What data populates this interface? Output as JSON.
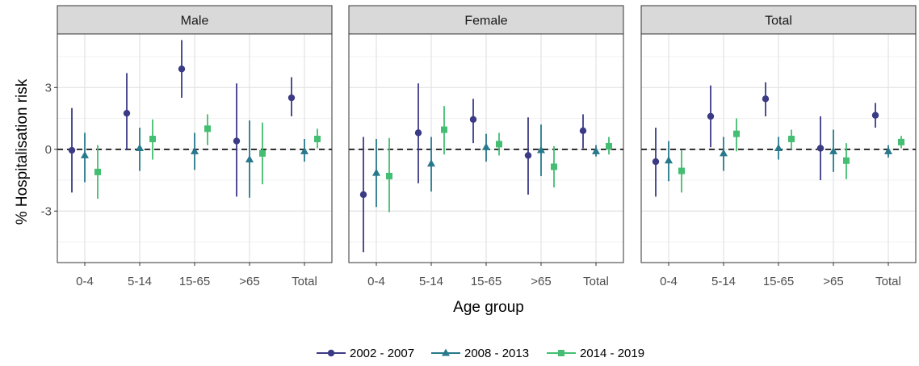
{
  "chart_data": {
    "type": "scatter",
    "subtype": "point-range faceted",
    "xlabel": "Age group",
    "ylabel": "% Hospitalisation risk",
    "ylim": [
      -5.5,
      5.6
    ],
    "yticks": [
      -3,
      0,
      3
    ],
    "reference_line": 0,
    "grid": true,
    "legend_position": "bottom",
    "categories": [
      "0-4",
      "5-14",
      "15-65",
      ">65",
      "Total"
    ],
    "series": [
      {
        "name": "2002 - 2007",
        "marker": "circle",
        "color": "#3b3a85"
      },
      {
        "name": "2008 - 2013",
        "marker": "triangle",
        "color": "#28798c"
      },
      {
        "name": "2014 - 2019",
        "marker": "square",
        "color": "#43be72"
      }
    ],
    "panels": [
      {
        "title": "Male",
        "data": {
          "2002 - 2007": [
            [
              -0.05,
              -2.1,
              2.0
            ],
            [
              1.75,
              -0.05,
              3.7
            ],
            [
              3.9,
              2.5,
              5.3
            ],
            [
              0.4,
              -2.3,
              3.2
            ],
            [
              2.5,
              1.6,
              3.5
            ]
          ],
          "2008 - 2013": [
            [
              -0.3,
              -1.6,
              0.8
            ],
            [
              0.05,
              -1.05,
              1.05
            ],
            [
              -0.1,
              -1.0,
              0.8
            ],
            [
              -0.5,
              -2.35,
              1.4
            ],
            [
              -0.1,
              -0.6,
              0.5
            ]
          ],
          "2014 - 2019": [
            [
              -1.1,
              -2.4,
              0.2
            ],
            [
              0.5,
              -0.5,
              1.45
            ],
            [
              1.0,
              0.2,
              1.7
            ],
            [
              -0.2,
              -1.7,
              1.3
            ],
            [
              0.5,
              0.05,
              1.0
            ]
          ]
        }
      },
      {
        "title": "Female",
        "data": {
          "2002 - 2007": [
            [
              -2.2,
              -5.0,
              0.6
            ],
            [
              0.8,
              -1.65,
              3.2
            ],
            [
              1.45,
              0.3,
              2.45
            ],
            [
              -0.3,
              -2.2,
              1.55
            ],
            [
              0.9,
              0.05,
              1.7
            ]
          ],
          "2008 - 2013": [
            [
              -1.15,
              -2.8,
              0.5
            ],
            [
              -0.7,
              -2.05,
              0.6
            ],
            [
              0.1,
              -0.6,
              0.75
            ],
            [
              -0.05,
              -1.3,
              1.2
            ],
            [
              -0.1,
              -0.35,
              0.2
            ]
          ],
          "2014 - 2019": [
            [
              -1.3,
              -3.05,
              0.55
            ],
            [
              0.95,
              -0.25,
              2.1
            ],
            [
              0.25,
              -0.3,
              0.8
            ],
            [
              -0.85,
              -1.85,
              0.15
            ],
            [
              0.15,
              -0.25,
              0.6
            ]
          ]
        }
      },
      {
        "title": "Total",
        "data": {
          "2002 - 2007": [
            [
              -0.6,
              -2.3,
              1.05
            ],
            [
              1.6,
              0.1,
              3.1
            ],
            [
              2.45,
              1.6,
              3.25
            ],
            [
              0.05,
              -1.5,
              1.6
            ],
            [
              1.65,
              1.05,
              2.25
            ]
          ],
          "2008 - 2013": [
            [
              -0.55,
              -1.55,
              0.4
            ],
            [
              -0.2,
              -1.05,
              0.6
            ],
            [
              0.05,
              -0.5,
              0.6
            ],
            [
              -0.1,
              -1.1,
              0.95
            ],
            [
              -0.1,
              -0.4,
              0.2
            ]
          ],
          "2014 - 2019": [
            [
              -1.05,
              -2.1,
              -0.05
            ],
            [
              0.75,
              -0.1,
              1.5
            ],
            [
              0.5,
              0.0,
              0.95
            ],
            [
              -0.55,
              -1.45,
              0.3
            ],
            [
              0.35,
              0.05,
              0.65
            ]
          ]
        }
      }
    ]
  }
}
